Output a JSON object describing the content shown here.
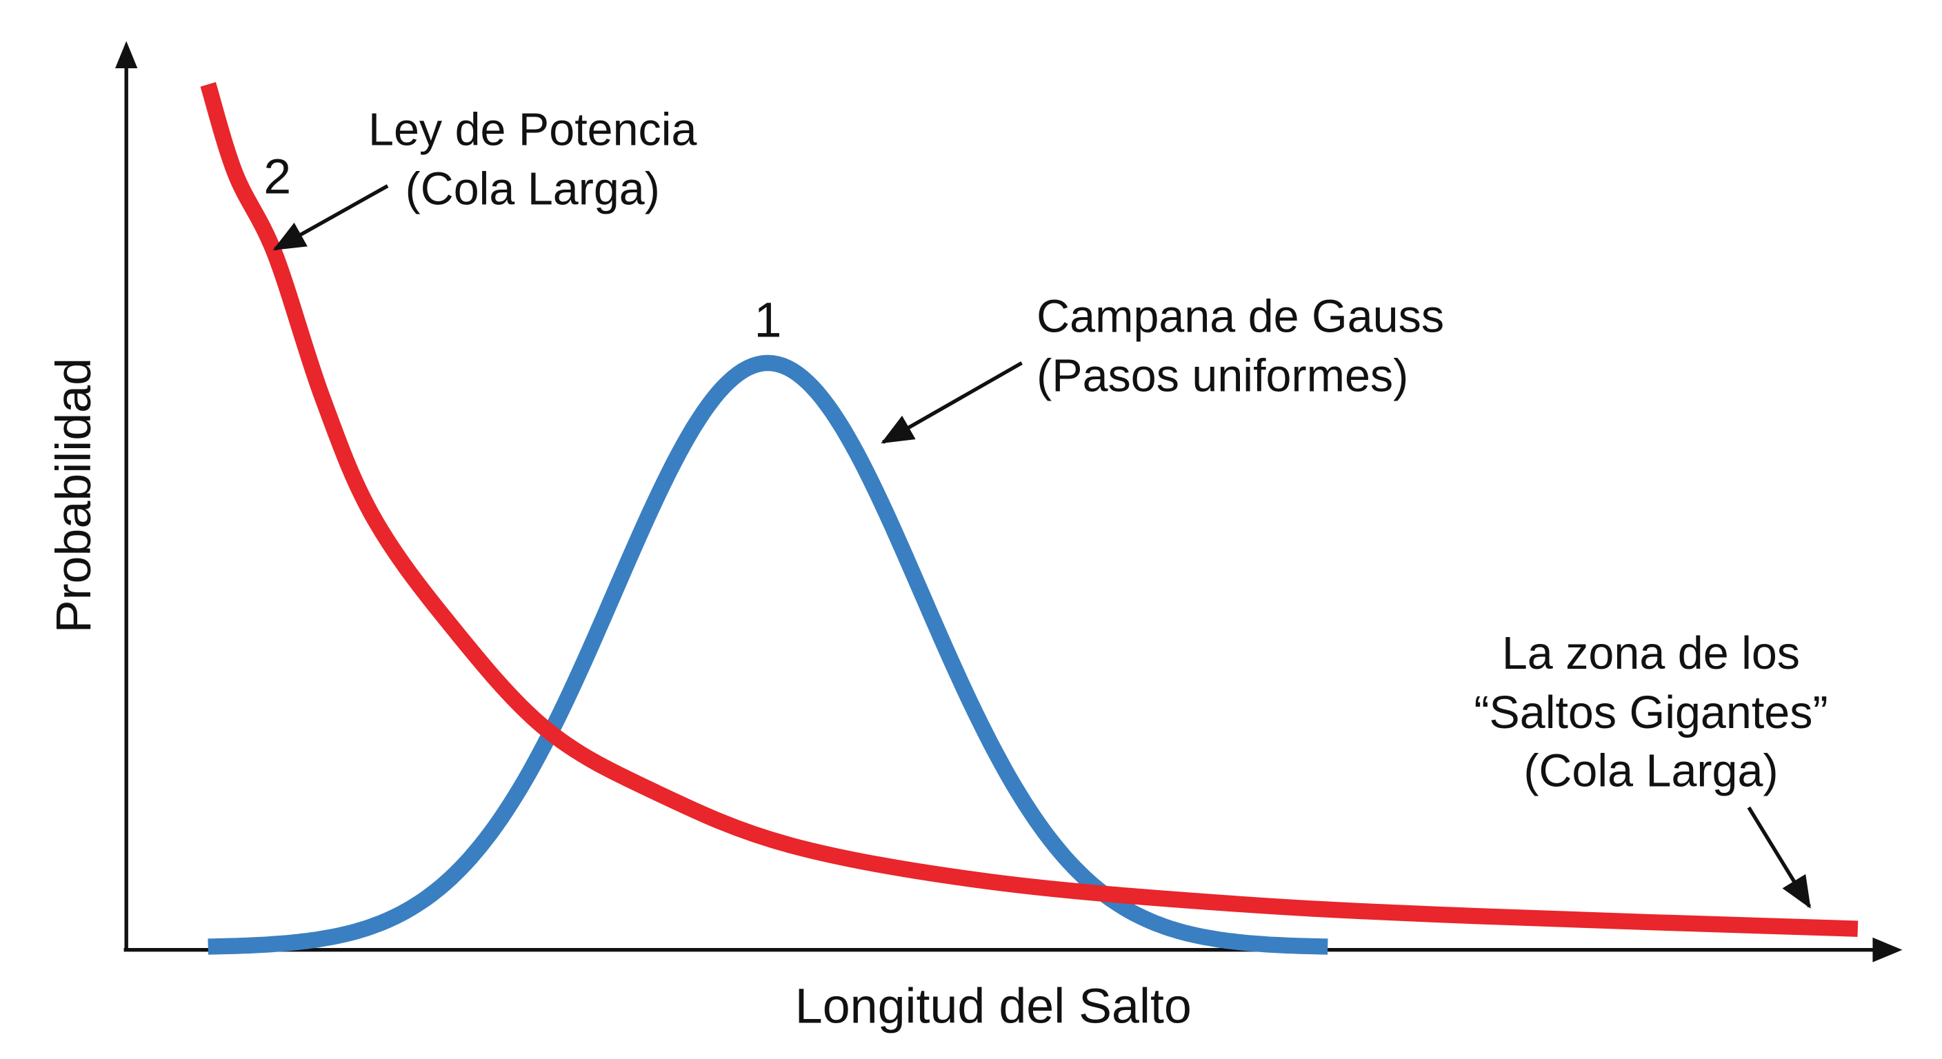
{
  "axes": {
    "x_label": "Longitud del Salto",
    "y_label": "Probabilidad"
  },
  "curves": {
    "gauss": {
      "marker": "1",
      "color": "#3a7fc1",
      "label_line1": "Campana de Gauss",
      "label_line2": "(Pasos uniformes)"
    },
    "power_law": {
      "marker": "2",
      "color": "#e8262b",
      "label_line1": "Ley de Potencia",
      "label_line2": "(Cola Larga)"
    }
  },
  "tail_annotation": {
    "line1": "La zona de los",
    "line2": "“Saltos Gigantes”",
    "line3": "(Cola Larga)"
  }
}
